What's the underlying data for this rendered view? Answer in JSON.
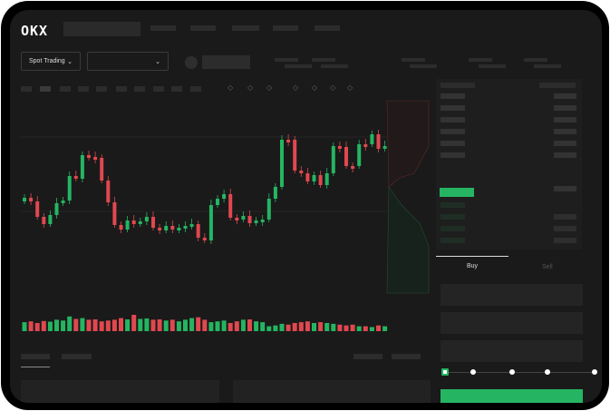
{
  "brand": {
    "logo": "OKX"
  },
  "toolbar": {
    "market_select": "Spot Trading",
    "pair_select": ""
  },
  "trade": {
    "buy_tab": "Buy",
    "sell_tab": "Sell",
    "slider_percent": 0,
    "buy_color": "#25b562"
  },
  "colors": {
    "up": "#25b562",
    "down": "#e0484f",
    "background": "#1a1a1a"
  },
  "candles": [
    207,
    211,
    228,
    236,
    226,
    213,
    210,
    183,
    186,
    160,
    162,
    163,
    188,
    212,
    237,
    242,
    232,
    236,
    233,
    228,
    240,
    243,
    238,
    242,
    240,
    238,
    236,
    251,
    254,
    215,
    208,
    203,
    229,
    231,
    227,
    235,
    232,
    231,
    208,
    195,
    143,
    143,
    177,
    180,
    189,
    182,
    193,
    180,
    150,
    151,
    172,
    172,
    148,
    148,
    137,
    153,
    150
  ],
  "volumes": [
    0.55,
    0.6,
    0.5,
    0.62,
    0.58,
    0.7,
    0.65,
    0.9,
    0.75,
    0.8,
    0.7,
    0.72,
    0.6,
    0.65,
    0.7,
    0.8,
    0.72,
    1.0,
    0.75,
    0.78,
    0.7,
    0.72,
    0.65,
    0.7,
    0.6,
    0.7,
    0.8,
    0.85,
    0.7,
    0.55,
    0.6,
    0.65,
    0.5,
    0.6,
    0.7,
    0.72,
    0.6,
    0.55,
    0.3,
    0.35,
    0.45,
    0.4,
    0.5,
    0.55,
    0.6,
    0.5,
    0.55,
    0.5,
    0.45,
    0.4,
    0.35,
    0.4,
    0.3,
    0.3,
    0.25,
    0.35,
    0.3
  ]
}
